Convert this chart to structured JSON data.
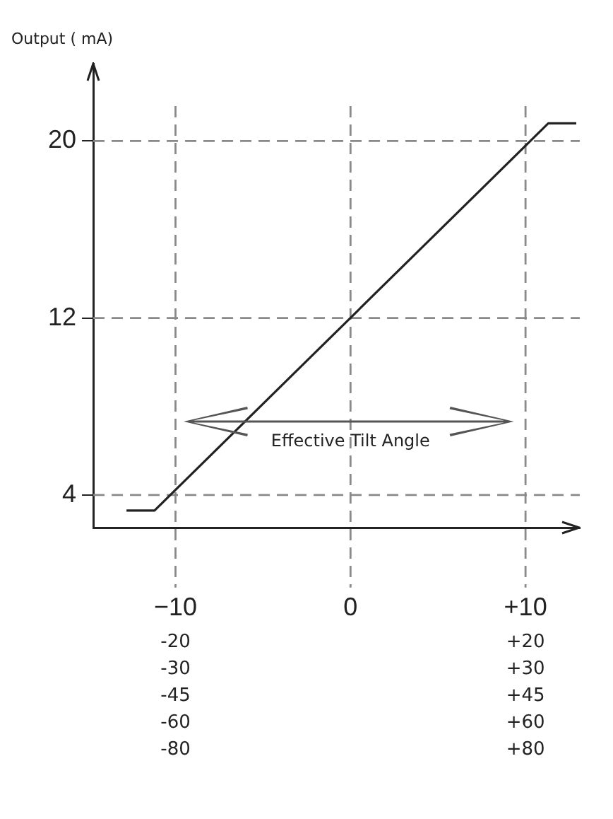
{
  "chart_data": {
    "type": "line",
    "ylabel": "Output ( mA)",
    "series": [
      {
        "color": "#222222",
        "x": [
          -12.8,
          -11.2,
          11.3,
          12.9
        ],
        "values": [
          3.3,
          3.3,
          20.8,
          20.8
        ]
      }
    ],
    "xlim": [
      -14.7,
      13.1
    ],
    "ylim": [
      2.5,
      23.5
    ],
    "xticks": [
      {
        "value": -10,
        "label": "−10"
      },
      0,
      {
        "value": 10,
        "label": "+10"
      }
    ],
    "yticks": [
      4,
      12,
      20
    ],
    "ref_lines": [
      {
        "axis": "x",
        "value": -10
      },
      {
        "axis": "x",
        "value": 0
      },
      {
        "axis": "x",
        "value": 10
      },
      {
        "axis": "y",
        "value": 4
      },
      {
        "axis": "y",
        "value": 12
      },
      {
        "axis": "y",
        "value": 20
      }
    ],
    "annotations": [
      "Effective Tilt Angle",
      "-20",
      "-30",
      "-45",
      "-60",
      "-80",
      "+20",
      "+30",
      "+45",
      "+60",
      "+80"
    ],
    "marker": "none",
    "grid": false,
    "legend": false
  }
}
